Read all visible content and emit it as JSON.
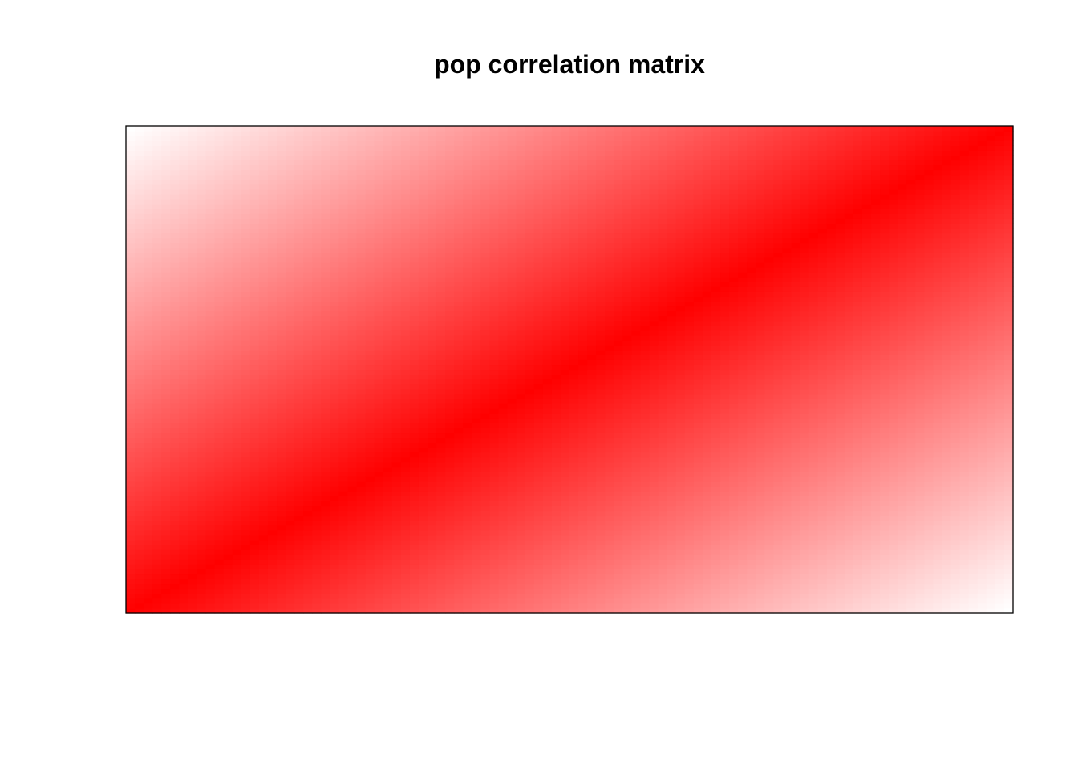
{
  "chart_data": {
    "type": "heatmap",
    "title": "pop correlation matrix",
    "xlabel": "",
    "ylabel": "",
    "n_rows": 100,
    "n_cols": 100,
    "value_function": "1 - |i - j| / (n - 1)",
    "value_range": [
      0,
      1
    ],
    "color_low": "#ffffff",
    "color_high": "#ff0000",
    "border_color": "#000000",
    "grid": false,
    "axes_shown": false
  }
}
